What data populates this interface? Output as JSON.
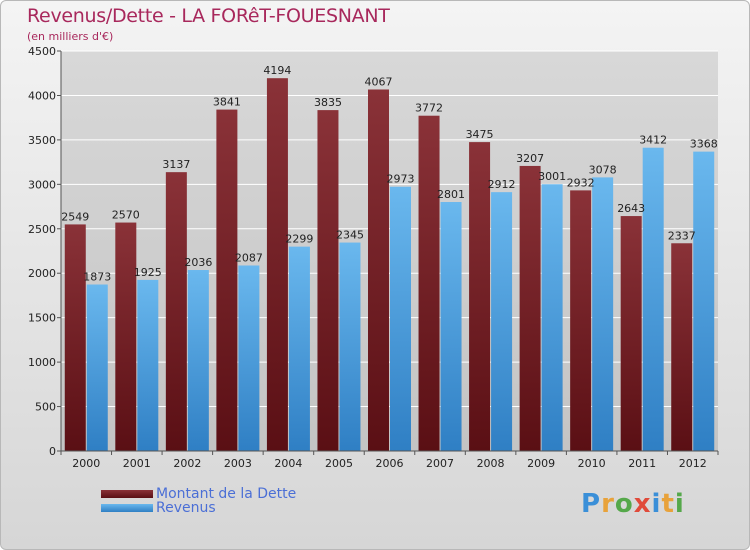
{
  "title": "Revenus/Dette - LA FORêT-FOUESNANT",
  "subtitle": "(en milliers d'€)",
  "logo": {
    "text": "Proxiti",
    "letter_colors": [
      "#3a8fd8",
      "#e8a23a",
      "#55a84a",
      "#e04a3a",
      "#3a8fd8",
      "#e8a23a",
      "#55a84a"
    ]
  },
  "colors": {
    "dette": "#6e1a1f",
    "dette_light": "#8a3238",
    "revenus": "#4da3e2",
    "revenus_light": "#6ab8ee",
    "grid": "#ffffff",
    "axis_text": "#222222"
  },
  "chart_data": {
    "type": "bar",
    "categories": [
      "2000",
      "2001",
      "2002",
      "2003",
      "2004",
      "2005",
      "2006",
      "2007",
      "2008",
      "2009",
      "2010",
      "2011",
      "2012"
    ],
    "series": [
      {
        "name": "Montant de la Dette",
        "values": [
          2549,
          2570,
          3137,
          3841,
          4194,
          3835,
          4067,
          3772,
          3475,
          3207,
          2932,
          2643,
          2337
        ]
      },
      {
        "name": "Revenus",
        "values": [
          1873,
          1925,
          2036,
          2087,
          2299,
          2345,
          2973,
          2801,
          2912,
          3001,
          3078,
          3412,
          3368
        ]
      }
    ],
    "yticks": [
      0,
      500,
      1000,
      1500,
      2000,
      2500,
      3000,
      3500,
      4000,
      4500
    ],
    "ylim": [
      0,
      4500
    ],
    "grid": true,
    "legend_position": "bottom-left"
  }
}
